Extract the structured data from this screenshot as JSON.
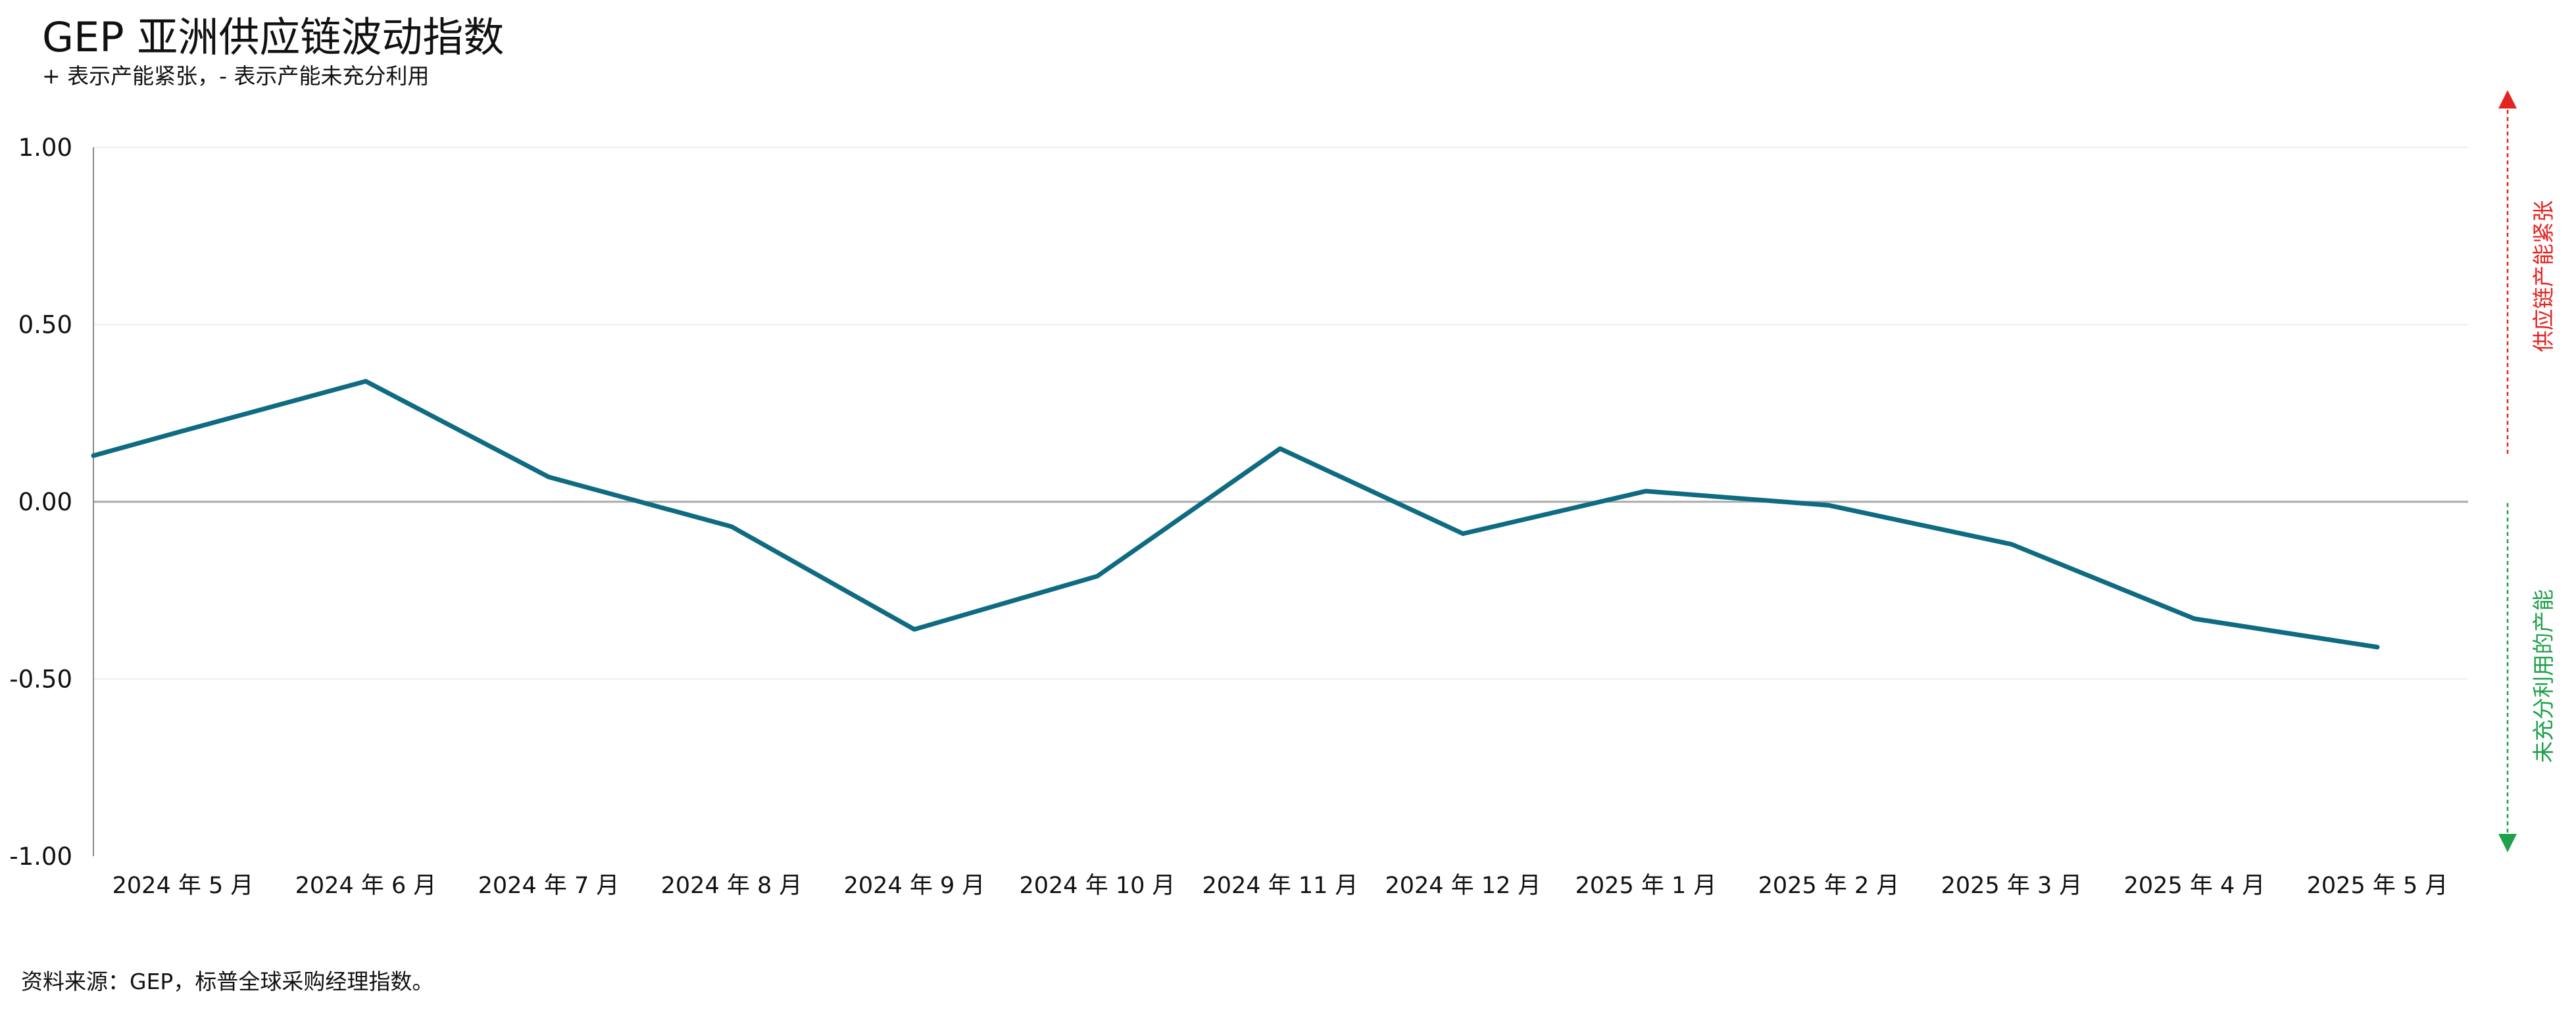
{
  "chart_data": {
    "type": "line",
    "title": "GEP 亚洲供应链波动指数",
    "subtitle": "+ 表示产能紧张，- 表示产能未充分利用",
    "categories": [
      "2024 年 5 月",
      "2024 年 6 月",
      "2024 年 7 月",
      "2024 年 8 月",
      "2024 年 9 月",
      "2024 年 10 月",
      "2024 年 11 月",
      "2024 年 12 月",
      "2025 年 1 月",
      "2025 年 2 月",
      "2025 年 3 月",
      "2025 年 4 月",
      "2025 年 5 月"
    ],
    "series": [
      {
        "values": [
          0.2,
          0.34,
          0.07,
          -0.07,
          -0.36,
          -0.21,
          0.15,
          -0.09,
          0.03,
          -0.01,
          -0.12,
          -0.33,
          -0.41
        ],
        "color": "#0e6b82",
        "leading_value": 0.13
      }
    ],
    "ylim": [
      -1.0,
      1.0
    ],
    "yticks": [
      "1.00",
      "0.50",
      "0.00",
      "-0.50",
      "-1.00"
    ],
    "ytick_values": [
      1.0,
      0.5,
      0.0,
      -0.5,
      -1.0
    ],
    "xlabel": "",
    "ylabel": "",
    "grid": true,
    "legend": "none",
    "side_annotations": {
      "upper": {
        "text": "供应链产能紧张",
        "color": "#e52421"
      },
      "lower": {
        "text": "未充分利用的产能",
        "color": "#1fa04a"
      }
    },
    "source": "资料来源：GEP，标普全球采购经理指数。"
  }
}
